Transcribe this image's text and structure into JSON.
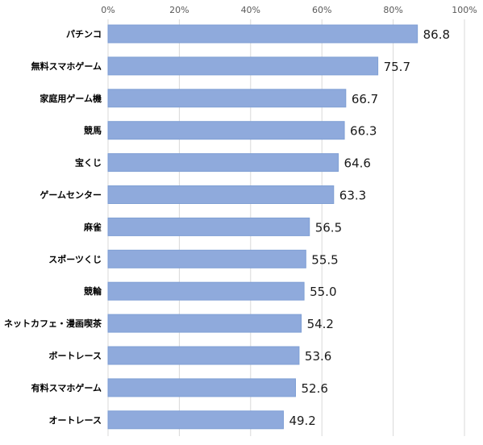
{
  "chart_data": {
    "type": "bar",
    "orientation": "horizontal",
    "categories": [
      "パチンコ",
      "無料スマホゲーム",
      "家庭用ゲーム機",
      "競馬",
      "宝くじ",
      "ゲームセンター",
      "麻雀",
      "スポーツくじ",
      "競輪",
      "ネットカフェ・漫画喫茶",
      "ボートレース",
      "有料スマホゲーム",
      "オートレース"
    ],
    "values": [
      86.8,
      75.7,
      66.7,
      66.3,
      64.6,
      63.3,
      56.5,
      55.5,
      55.0,
      54.2,
      53.6,
      52.6,
      49.2
    ],
    "value_labels": [
      "86.8",
      "75.7",
      "66.7",
      "66.3",
      "64.6",
      "63.3",
      "56.5",
      "55.5",
      "55.0",
      "54.2",
      "53.6",
      "52.6",
      "49.2"
    ],
    "x_ticks": [
      0,
      20,
      40,
      60,
      80,
      100
    ],
    "x_tick_labels": [
      "0%",
      "20%",
      "40%",
      "60%",
      "80%",
      "100%"
    ],
    "xlim": [
      0,
      100
    ],
    "x_axis_position": "top",
    "grid": true,
    "bar_color": "#8faadc",
    "bar_border_color": "#7f9fd4",
    "grid_color": "#d9d9d9",
    "title": "",
    "xlabel": "",
    "ylabel": ""
  }
}
